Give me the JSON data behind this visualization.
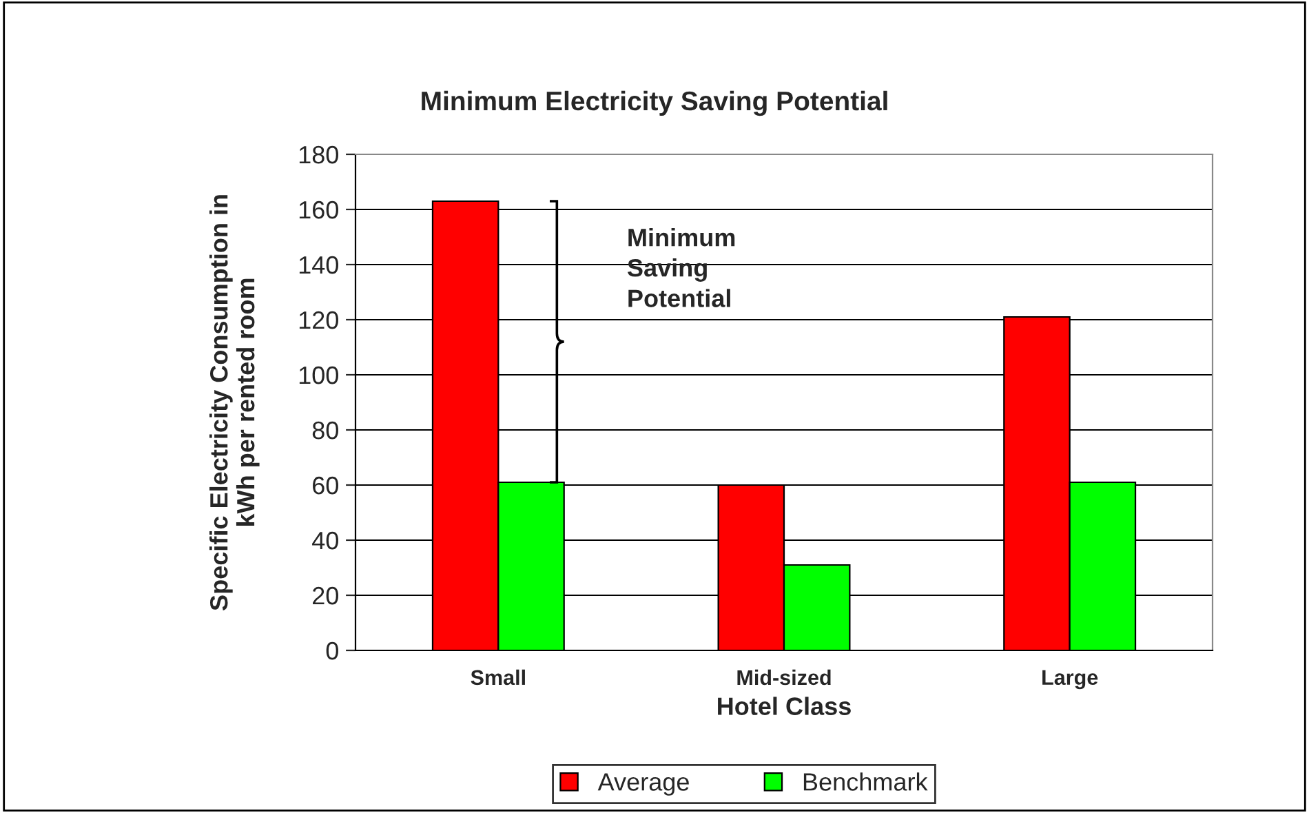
{
  "chart_data": {
    "type": "bar",
    "title": "Minimum Electricity Saving Potential",
    "xlabel": "Hotel Class",
    "ylabel": "Specific Electricity Consumption in\nkWh per rented room",
    "categories": [
      "Small",
      "Mid-sized",
      "Large"
    ],
    "series": [
      {
        "name": "Average",
        "color": "#ff0000",
        "values": [
          163,
          60,
          121
        ]
      },
      {
        "name": "Benchmark",
        "color": "#00ff00",
        "values": [
          61,
          31,
          61
        ]
      }
    ],
    "ylim": [
      0,
      180
    ],
    "yticks": [
      0,
      20,
      40,
      60,
      80,
      100,
      120,
      140,
      160,
      180
    ],
    "grid": "y",
    "legend": "bottom",
    "annotations": [
      "Minimum\nSaving\nPotential"
    ]
  }
}
